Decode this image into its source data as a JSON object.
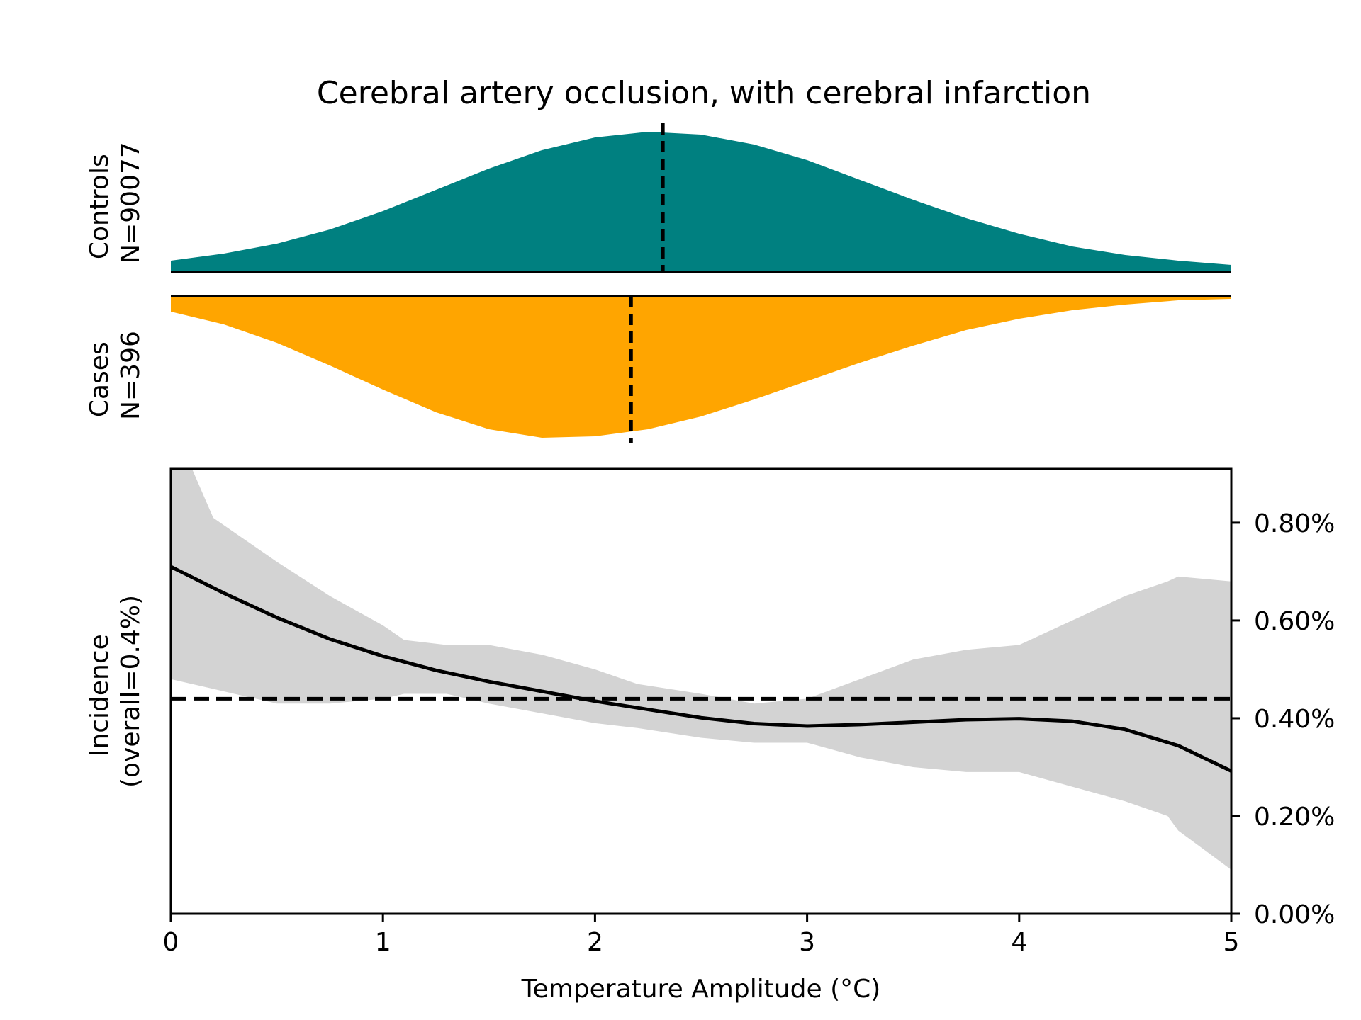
{
  "chart_data": [
    {
      "type": "area",
      "panel": "controls-distribution",
      "title": "Cerebral artery occlusion, with cerebral infarction",
      "ylabel_lines": [
        "Controls",
        "N=90077"
      ],
      "color": "#008080",
      "xlim": [
        0,
        5
      ],
      "density": {
        "x": [
          0,
          0.25,
          0.5,
          0.75,
          1,
          1.25,
          1.5,
          1.75,
          2,
          2.25,
          2.5,
          2.75,
          3,
          3.25,
          3.5,
          3.75,
          4,
          4.25,
          4.5,
          4.75,
          5
        ],
        "y": [
          0.08,
          0.13,
          0.2,
          0.3,
          0.43,
          0.58,
          0.73,
          0.86,
          0.95,
          0.99,
          0.97,
          0.9,
          0.79,
          0.65,
          0.51,
          0.38,
          0.27,
          0.18,
          0.12,
          0.08,
          0.05
        ]
      },
      "mean_line_x": 2.32
    },
    {
      "type": "area",
      "panel": "cases-distribution",
      "ylabel_lines": [
        "Cases",
        "N=396"
      ],
      "color": "#FFA500",
      "xlim": [
        0,
        5
      ],
      "density": {
        "x": [
          0,
          0.25,
          0.5,
          0.75,
          1,
          1.25,
          1.5,
          1.75,
          2,
          2.25,
          2.5,
          2.75,
          3,
          3.25,
          3.5,
          3.75,
          4,
          4.25,
          4.5,
          4.75,
          5
        ],
        "y": [
          0.11,
          0.2,
          0.33,
          0.49,
          0.66,
          0.82,
          0.94,
          1.0,
          0.99,
          0.94,
          0.85,
          0.73,
          0.6,
          0.47,
          0.35,
          0.24,
          0.16,
          0.1,
          0.06,
          0.03,
          0.02
        ]
      },
      "mean_line_x": 2.17
    },
    {
      "type": "line",
      "panel": "incidence",
      "xlabel": "Temperature Amplitude (°C)",
      "ylabel_lines": [
        "Incidence",
        "(overall=0.4%)"
      ],
      "xlim": [
        0,
        5
      ],
      "ylim": [
        0,
        0.91
      ],
      "x_ticks": [
        "0",
        "1",
        "2",
        "3",
        "4",
        "5"
      ],
      "y_ticks": [
        "0.00%",
        "0.20%",
        "0.40%",
        "0.60%",
        "0.80%"
      ],
      "y_tick_values": [
        0,
        0.2,
        0.4,
        0.6,
        0.8
      ],
      "y_axis_side": "right",
      "overall_line_y": 0.44,
      "series": [
        {
          "x": [
            0,
            0.25,
            0.5,
            0.75,
            1,
            1.25,
            1.5,
            1.75,
            2,
            2.25,
            2.5,
            2.75,
            3,
            3.25,
            3.5,
            3.75,
            4,
            4.25,
            4.5,
            4.75,
            5
          ],
          "values": [
            0.71,
            0.656,
            0.606,
            0.562,
            0.527,
            0.498,
            0.475,
            0.455,
            0.435,
            0.418,
            0.401,
            0.389,
            0.384,
            0.387,
            0.392,
            0.397,
            0.399,
            0.394,
            0.377,
            0.344,
            0.292
          ]
        }
      ],
      "band": {
        "x": [
          0,
          0.1,
          0.2,
          0.3,
          0.5,
          0.75,
          1,
          1.1,
          1.3,
          1.5,
          1.75,
          2,
          2.2,
          2.5,
          2.75,
          3,
          3.25,
          3.5,
          3.75,
          4,
          4.25,
          4.5,
          4.7,
          4.75,
          5
        ],
        "upper": [
          0.91,
          0.91,
          0.81,
          0.78,
          0.72,
          0.65,
          0.59,
          0.56,
          0.55,
          0.55,
          0.53,
          0.5,
          0.47,
          0.45,
          0.43,
          0.44,
          0.48,
          0.52,
          0.54,
          0.55,
          0.6,
          0.65,
          0.68,
          0.69,
          0.68
        ],
        "lower": [
          0.48,
          0.47,
          0.46,
          0.45,
          0.43,
          0.43,
          0.44,
          0.45,
          0.45,
          0.43,
          0.41,
          0.39,
          0.38,
          0.36,
          0.35,
          0.35,
          0.32,
          0.3,
          0.29,
          0.29,
          0.26,
          0.23,
          0.2,
          0.17,
          0.09
        ]
      },
      "band_color": "#D3D3D3",
      "line_color": "#000000"
    }
  ]
}
